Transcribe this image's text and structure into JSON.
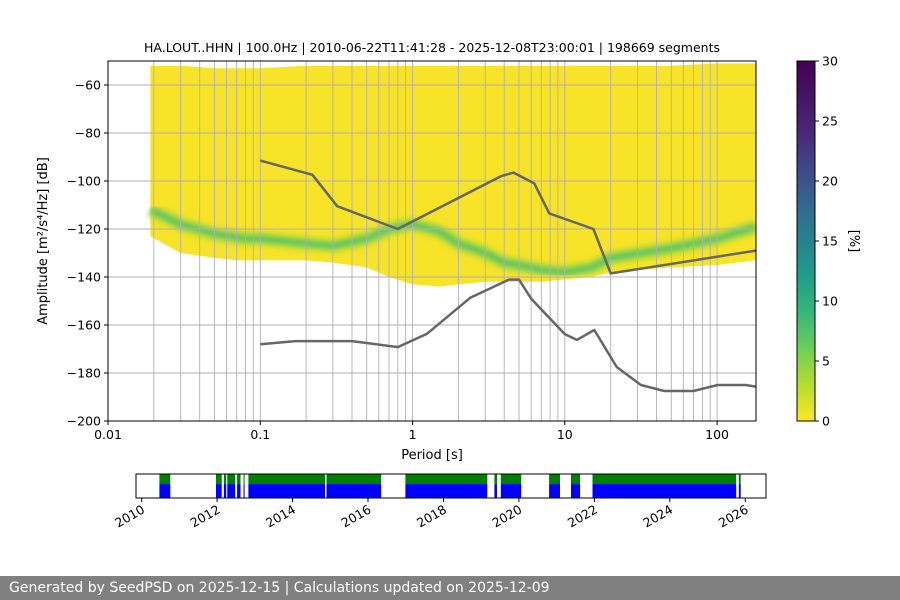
{
  "chart_data": [
    {
      "type": "heatmap",
      "title": "HA.LOUT..HHN | 100.0Hz | 2010-06-22T11:41:28 - 2025-12-08T23:00:01 | 198669 segments",
      "xlabel": "Period [s]",
      "ylabel": "Amplitude [m²/s⁴/Hz] [dB]",
      "x_scale": "log",
      "xlim": [
        0.01,
        180
      ],
      "ylim": [
        -200,
        -50
      ],
      "x_ticks": [
        {
          "value": 0.01,
          "label": "0.01"
        },
        {
          "value": 0.1,
          "label": "0.1"
        },
        {
          "value": 1,
          "label": "1"
        },
        {
          "value": 10,
          "label": "10"
        },
        {
          "value": 100,
          "label": "100"
        }
      ],
      "y_ticks": [
        {
          "value": -60,
          "label": "−60"
        },
        {
          "value": -80,
          "label": "−80"
        },
        {
          "value": -100,
          "label": "−100"
        },
        {
          "value": -120,
          "label": "−120"
        },
        {
          "value": -140,
          "label": "−140"
        },
        {
          "value": -160,
          "label": "−160"
        },
        {
          "value": -180,
          "label": "−180"
        },
        {
          "value": -200,
          "label": "−200"
        }
      ],
      "grid": true,
      "colorbar": {
        "label": "[%]",
        "range": [
          0,
          30
        ],
        "ticks": [
          {
            "value": 0,
            "label": "0"
          },
          {
            "value": 5,
            "label": "5"
          },
          {
            "value": 10,
            "label": "10"
          },
          {
            "value": 15,
            "label": "15"
          },
          {
            "value": 20,
            "label": "20"
          },
          {
            "value": 25,
            "label": "25"
          },
          {
            "value": 30,
            "label": "30"
          }
        ],
        "colormap": "viridis_r"
      },
      "psd_envelope": {
        "x": [
          0.019,
          0.03,
          0.05,
          0.07,
          0.1,
          0.2,
          0.3,
          0.5,
          0.7,
          1.0,
          1.5,
          2,
          3,
          5,
          7,
          10,
          15,
          20,
          50,
          100,
          180
        ],
        "upper": [
          -52,
          -52,
          -53,
          -53,
          -53,
          -52,
          -52,
          -52,
          -52,
          -52,
          -52,
          -52,
          -52,
          -52,
          -52,
          -52,
          -52,
          -52,
          -52,
          -51,
          -51
        ],
        "lower": [
          -123,
          -130,
          -132,
          -133,
          -133,
          -133,
          -134,
          -136,
          -140,
          -143,
          -144,
          -143,
          -142,
          -142,
          -142,
          -141,
          -140,
          -138,
          -136,
          -135,
          -133
        ]
      },
      "psd_mode": {
        "x": [
          0.019,
          0.03,
          0.05,
          0.08,
          0.1,
          0.2,
          0.3,
          0.5,
          0.7,
          1.0,
          1.5,
          2,
          3,
          4,
          5,
          7,
          10,
          15,
          20,
          50,
          100,
          180
        ],
        "y": [
          -112,
          -118,
          -122,
          -124,
          -124,
          -126,
          -127,
          -124,
          -120,
          -118,
          -121,
          -126,
          -130,
          -134,
          -135,
          -137,
          -138,
          -136,
          -132,
          -128,
          -124,
          -119
        ]
      },
      "high_noise_model": {
        "x": [
          0.1,
          0.22,
          0.32,
          0.8,
          3.8,
          4.6,
          6.3,
          7.9,
          15.4,
          20.0,
          180.0
        ],
        "y": [
          -91.5,
          -97.4,
          -110.5,
          -120.0,
          -98.0,
          -96.5,
          -101.0,
          -113.5,
          -120.0,
          -138.5,
          -129.0
        ]
      },
      "low_noise_model": {
        "x": [
          0.1,
          0.17,
          0.4,
          0.8,
          1.24,
          2.4,
          4.3,
          5.0,
          6.0,
          10.0,
          12.0,
          15.6,
          21.9,
          31.6,
          45.0,
          70.0,
          101.0,
          154.0,
          180.0
        ],
        "y": [
          -168.0,
          -166.7,
          -166.7,
          -169.2,
          -163.7,
          -148.6,
          -141.1,
          -141.1,
          -149.0,
          -163.8,
          -166.2,
          -162.1,
          -177.5,
          -185.0,
          -187.5,
          -187.5,
          -185.0,
          -185.0,
          -185.7
        ]
      },
      "series_colors": {
        "noise_model": "#666666",
        "grid": "#b0b0b0"
      }
    },
    {
      "type": "timeline",
      "x_ticks": [
        {
          "value": 2010,
          "label": "2010"
        },
        {
          "value": 2012,
          "label": "2012"
        },
        {
          "value": 2014,
          "label": "2014"
        },
        {
          "value": 2016,
          "label": "2016"
        },
        {
          "value": 2018,
          "label": "2018"
        },
        {
          "value": 2020,
          "label": "2020"
        },
        {
          "value": 2022,
          "label": "2022"
        },
        {
          "value": 2024,
          "label": "2024"
        },
        {
          "value": 2026,
          "label": "2026"
        }
      ],
      "xlim": [
        2009.85,
        2026.55
      ],
      "available_spans": [
        [
          2010.47,
          2010.76
        ],
        [
          2011.97,
          2012.12
        ],
        [
          2012.18,
          2012.24
        ],
        [
          2012.27,
          2012.48
        ],
        [
          2012.53,
          2012.62
        ],
        [
          2012.7,
          2012.73
        ],
        [
          2012.83,
          2014.86
        ],
        [
          2014.9,
          2016.35
        ],
        [
          2016.99,
          2019.16
        ],
        [
          2019.35,
          2019.42
        ],
        [
          2019.52,
          2020.06
        ],
        [
          2020.8,
          2021.09
        ],
        [
          2021.38,
          2021.62
        ],
        [
          2021.95,
          2025.76
        ],
        [
          2025.83,
          2025.88
        ]
      ],
      "colors": {
        "upper": "#008000",
        "lower": "#0000ff"
      }
    }
  ],
  "footer": {
    "text": "Generated by SeedPSD on 2025-12-15 | Calculations updated on 2025-12-09"
  }
}
